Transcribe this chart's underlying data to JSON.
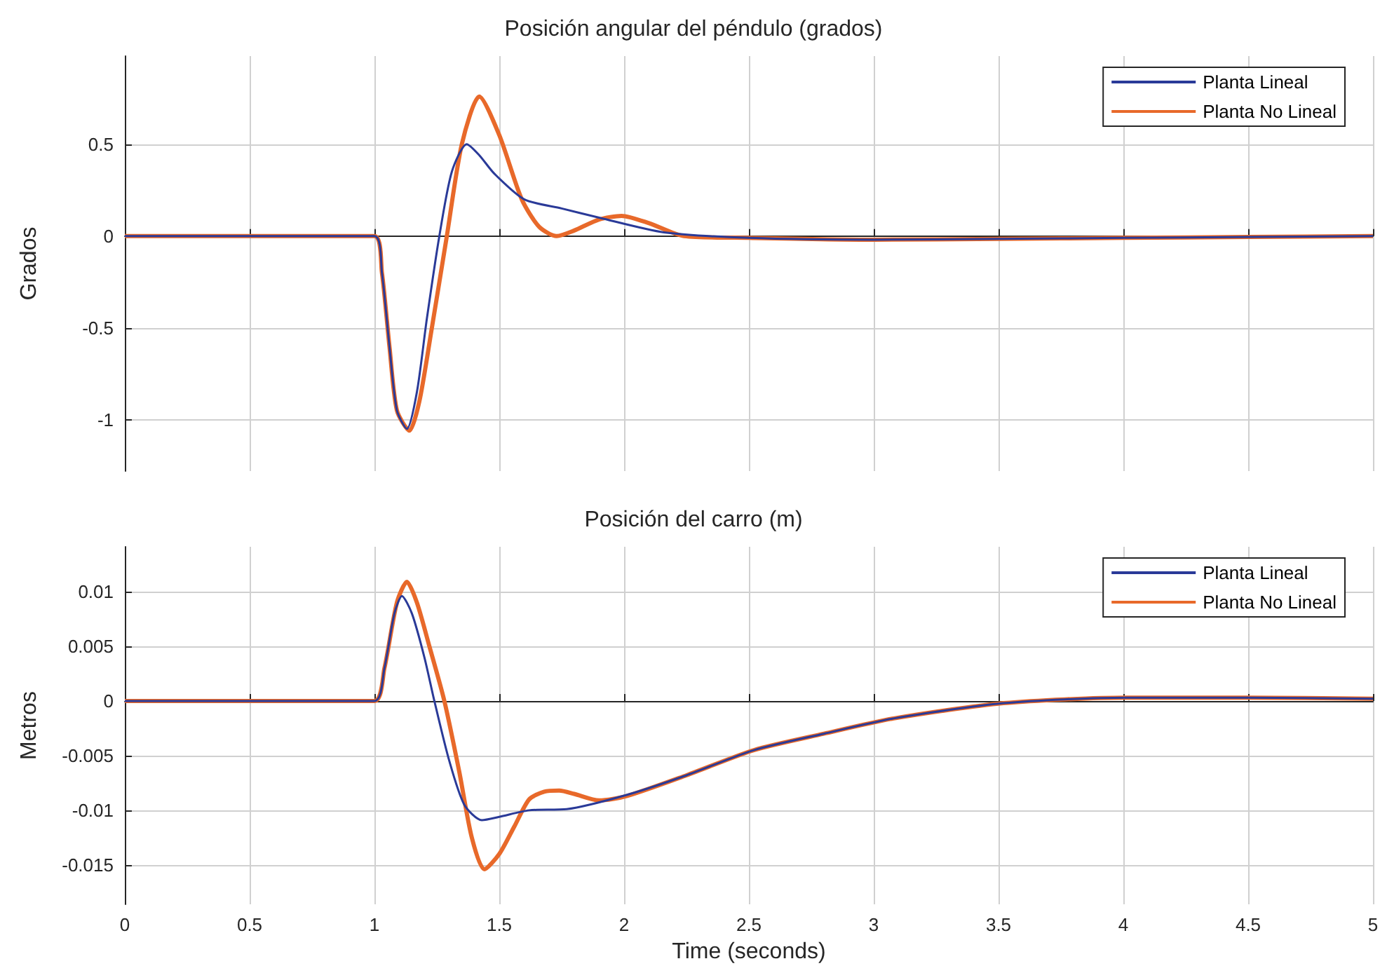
{
  "chart_data": [
    {
      "type": "line",
      "title": "Posición angular del péndulo (grados)",
      "ylabel": "Grados",
      "xlim": [
        0,
        5
      ],
      "xticks": [
        0,
        0.5,
        1,
        1.5,
        2,
        2.5,
        3,
        3.5,
        4,
        4.5,
        5
      ],
      "ylim": [
        -1.28,
        0.98
      ],
      "yticks": [
        -1,
        -0.5,
        0,
        0.5
      ],
      "tick_labels": "y",
      "grid": true,
      "legend": "top right",
      "line_style": "solid",
      "marker": "none",
      "series": [
        {
          "name": "Planta Lineal",
          "color": "#2a3a98",
          "x": [
            0,
            1,
            1.03,
            1.06,
            1.09,
            1.13,
            1.17,
            1.21,
            1.26,
            1.31,
            1.37,
            1.42,
            1.48,
            1.6,
            1.75,
            1.9,
            2.16,
            2.5,
            3,
            3.5,
            4,
            4.5,
            5
          ],
          "values": [
            0,
            0,
            -0.2,
            -0.6,
            -0.95,
            -1.05,
            -0.85,
            -0.45,
            0,
            0.35,
            0.5,
            0.44,
            0.34,
            0.2,
            0.15,
            0.1,
            0.02,
            -0.01,
            -0.02,
            -0.015,
            -0.01,
            -0.005,
            0
          ]
        },
        {
          "name": "Planta No Lineal",
          "color": "#e8692a",
          "x": [
            0,
            1,
            1.03,
            1.06,
            1.09,
            1.14,
            1.18,
            1.23,
            1.29,
            1.35,
            1.42,
            1.5,
            1.59,
            1.66,
            1.73,
            1.8,
            1.9,
            1.99,
            2.1,
            2.24,
            2.5,
            3,
            3.5,
            4,
            4.5,
            5
          ],
          "values": [
            0,
            0,
            -0.2,
            -0.6,
            -0.95,
            -1.06,
            -0.9,
            -0.5,
            0,
            0.5,
            0.76,
            0.55,
            0.2,
            0.05,
            0,
            0.03,
            0.09,
            0.11,
            0.07,
            0,
            -0.01,
            -0.02,
            -0.015,
            -0.01,
            -0.005,
            0
          ]
        }
      ]
    },
    {
      "type": "line",
      "title": "Posición del carro (m)",
      "xlabel": "Time (seconds)",
      "ylabel": "Metros",
      "xlim": [
        0,
        5
      ],
      "xticks": [
        0,
        0.5,
        1,
        1.5,
        2,
        2.5,
        3,
        3.5,
        4,
        4.5,
        5
      ],
      "ylim": [
        -0.0186,
        0.0141
      ],
      "yticks": [
        -0.015,
        -0.01,
        -0.005,
        0,
        0.005,
        0.01
      ],
      "grid": true,
      "legend": "top right",
      "line_style": "solid",
      "marker": "none",
      "series": [
        {
          "name": "Planta Lineal",
          "color": "#2a3a98",
          "x": [
            0,
            1,
            1.04,
            1.08,
            1.11,
            1.15,
            1.2,
            1.24,
            1.3,
            1.36,
            1.43,
            1.5,
            1.62,
            1.77,
            2.01,
            2.25,
            2.52,
            2.8,
            3.08,
            3.52,
            4.01,
            4.5,
            5
          ],
          "values": [
            0,
            0,
            0.003,
            0.008,
            0.0096,
            0.008,
            0.004,
            0,
            -0.0055,
            -0.0095,
            -0.0109,
            -0.0106,
            -0.01,
            -0.0099,
            -0.0086,
            -0.0068,
            -0.0045,
            -0.003,
            -0.0016,
            -0.0002,
            0.0003,
            0.0003,
            0.0002
          ]
        },
        {
          "name": "Planta No Lineal",
          "color": "#e8692a",
          "x": [
            0,
            1,
            1.04,
            1.09,
            1.13,
            1.17,
            1.22,
            1.28,
            1.34,
            1.39,
            1.44,
            1.5,
            1.56,
            1.62,
            1.68,
            1.74,
            1.8,
            1.9,
            2.01,
            2.25,
            2.52,
            2.8,
            3.08,
            3.52,
            4.01,
            4.5,
            5
          ],
          "values": [
            0,
            0,
            0.003,
            0.009,
            0.0109,
            0.009,
            0.005,
            0,
            -0.0065,
            -0.0125,
            -0.0154,
            -0.014,
            -0.0115,
            -0.009,
            -0.0083,
            -0.0082,
            -0.0085,
            -0.0091,
            -0.0087,
            -0.0068,
            -0.0045,
            -0.003,
            -0.0016,
            -0.0002,
            0.0003,
            0.0003,
            0.0002
          ]
        }
      ]
    }
  ]
}
